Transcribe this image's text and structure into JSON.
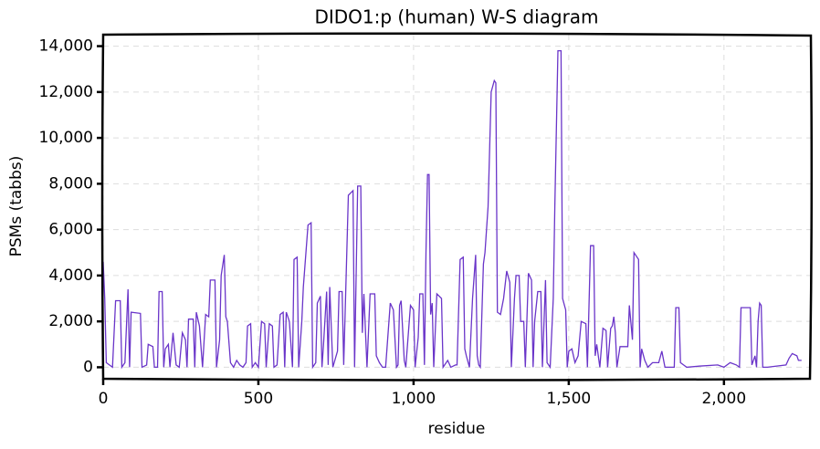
{
  "chart_data": {
    "type": "line",
    "title": "DIDO1:p (human) W-S diagram",
    "x_label": "residue",
    "y_label": "PSMs (tabbs)",
    "xlim": [
      0,
      2280
    ],
    "ylim": [
      -500,
      14500
    ],
    "xticks": [
      0,
      500,
      {
        "value": 1000,
        "label": "1,000"
      },
      {
        "value": 1500,
        "label": "1,500"
      },
      {
        "value": 2000,
        "label": "2,000"
      }
    ],
    "yticks": [
      0,
      {
        "value": 2000,
        "label": "2,000"
      },
      {
        "value": 4000,
        "label": "4,000"
      },
      {
        "value": 6000,
        "label": "6,000"
      },
      {
        "value": 8000,
        "label": "8,000"
      },
      {
        "value": 10000,
        "label": "10,000"
      },
      {
        "value": 12000,
        "label": "12,000"
      },
      {
        "value": 14000,
        "label": "14,000"
      }
    ],
    "grid": true,
    "series": [
      {
        "color": "#6a35c9",
        "x": [
          0,
          5,
          10,
          20,
          30,
          40,
          55,
          60,
          70,
          80,
          85,
          90,
          120,
          125,
          140,
          145,
          160,
          165,
          175,
          180,
          190,
          195,
          200,
          210,
          215,
          225,
          235,
          245,
          255,
          265,
          270,
          275,
          290,
          295,
          300,
          310,
          320,
          330,
          340,
          345,
          360,
          365,
          375,
          380,
          390,
          395,
          400,
          410,
          420,
          430,
          440,
          450,
          460,
          465,
          475,
          480,
          490,
          500,
          510,
          520,
          525,
          535,
          545,
          550,
          560,
          570,
          580,
          585,
          590,
          600,
          610,
          615,
          625,
          630,
          640,
          645,
          660,
          670,
          675,
          685,
          690,
          700,
          705,
          710,
          720,
          725,
          730,
          740,
          755,
          760,
          770,
          775,
          790,
          805,
          810,
          820,
          830,
          835,
          840,
          850,
          860,
          875,
          880,
          890,
          900,
          910,
          925,
          935,
          945,
          950,
          955,
          960,
          970,
          975,
          990,
          1000,
          1005,
          1015,
          1020,
          1030,
          1035,
          1040,
          1045,
          1050,
          1055,
          1060,
          1065,
          1075,
          1090,
          1095,
          1110,
          1120,
          1135,
          1140,
          1150,
          1160,
          1165,
          1170,
          1180,
          1190,
          1200,
          1205,
          1210,
          1215,
          1220,
          1225,
          1230,
          1240,
          1250,
          1260,
          1265,
          1270,
          1280,
          1290,
          1300,
          1310,
          1315,
          1325,
          1330,
          1340,
          1345,
          1355,
          1360,
          1370,
          1380,
          1385,
          1390,
          1400,
          1410,
          1415,
          1425,
          1430,
          1440,
          1450,
          1455,
          1465,
          1475,
          1480,
          1490,
          1495,
          1500,
          1510,
          1520,
          1530,
          1540,
          1555,
          1560,
          1570,
          1580,
          1585,
          1590,
          1600,
          1610,
          1620,
          1625,
          1635,
          1640,
          1645,
          1650,
          1655,
          1665,
          1690,
          1695,
          1705,
          1710,
          1725,
          1730,
          1735,
          1745,
          1755,
          1770,
          1790,
          1800,
          1810,
          1840,
          1845,
          1855,
          1860,
          1870,
          1880,
          1920,
          1980,
          2000,
          2020,
          2040,
          2050,
          2055,
          2085,
          2090,
          2100,
          2105,
          2110,
          2115,
          2120,
          2125,
          2140,
          2200,
          2210,
          2220,
          2235,
          2240,
          2250
        ],
        "values": [
          4600,
          3000,
          200,
          100,
          0,
          2900,
          2900,
          0,
          200,
          3400,
          0,
          2400,
          2350,
          0,
          100,
          1000,
          900,
          0,
          0,
          3300,
          3300,
          0,
          800,
          1000,
          0,
          1500,
          100,
          0,
          1500,
          1200,
          0,
          2100,
          2100,
          0,
          2400,
          1800,
          0,
          2300,
          2200,
          3800,
          3800,
          0,
          1200,
          4000,
          4900,
          2200,
          2000,
          200,
          0,
          300,
          100,
          0,
          200,
          1800,
          1900,
          0,
          200,
          0,
          2000,
          1900,
          0,
          1900,
          1800,
          0,
          100,
          2300,
          2400,
          0,
          2400,
          2000,
          0,
          4700,
          4800,
          0,
          2000,
          3500,
          6200,
          6300,
          0,
          200,
          2800,
          3100,
          0,
          1000,
          3300,
          100,
          3500,
          0,
          700,
          3300,
          3300,
          100,
          7500,
          7700,
          0,
          7900,
          7900,
          1500,
          3200,
          0,
          3200,
          3200,
          500,
          200,
          0,
          0,
          2800,
          2500,
          0,
          100,
          2700,
          2900,
          300,
          0,
          2700,
          2500,
          0,
          1300,
          3200,
          3200,
          100,
          5000,
          8400,
          8400,
          2300,
          2800,
          0,
          3200,
          3000,
          0,
          300,
          0,
          100,
          100,
          4700,
          4800,
          800,
          500,
          0,
          3000,
          4900,
          500,
          100,
          0,
          2300,
          4500,
          5000,
          7000,
          12000,
          12500,
          12400,
          2400,
          2300,
          3000,
          4200,
          3700,
          0,
          3000,
          4000,
          4000,
          2000,
          2000,
          0,
          4100,
          3800,
          0,
          2000,
          3300,
          3300,
          0,
          3800,
          200,
          0,
          3000,
          7000,
          13800,
          13800,
          3000,
          2500,
          0,
          700,
          800,
          200,
          500,
          2000,
          1900,
          0,
          5300,
          5300,
          500,
          1000,
          0,
          1700,
          1600,
          0,
          1700,
          1800,
          2200,
          1500,
          0,
          900,
          900,
          2700,
          1200,
          5000,
          4700,
          0,
          800,
          300,
          0,
          200,
          200,
          700,
          0,
          0,
          2600,
          2600,
          200,
          100,
          0,
          50,
          100,
          0,
          200,
          100,
          0,
          2600,
          2600,
          100,
          500,
          0,
          2000,
          2800,
          2700,
          0,
          0,
          100,
          400,
          600,
          500,
          300,
          300
        ]
      }
    ]
  }
}
